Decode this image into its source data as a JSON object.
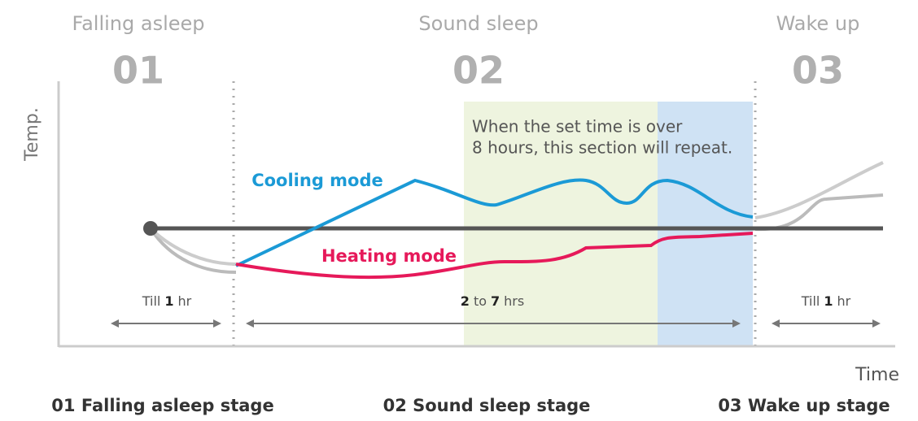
{
  "stages": [
    {
      "name": "Falling asleep",
      "number": "01",
      "caption": "01 Falling asleep stage"
    },
    {
      "name": "Sound sleep",
      "number": "02",
      "caption": "02 Sound sleep stage"
    },
    {
      "name": "Wake up",
      "number": "03",
      "caption": "03 Wake up stage"
    }
  ],
  "y_axis_label": "Temp.",
  "x_axis_label": "Time",
  "repeat_note": [
    "When the set time is over",
    "8 hours, this section will repeat."
  ],
  "modes": {
    "cooling": "Cooling mode",
    "heating": "Heating mode"
  },
  "durations": [
    [
      {
        "text": "Till"
      },
      {
        "text": "1",
        "bold": true
      },
      {
        "text": "hr"
      }
    ],
    [
      {
        "text": "2",
        "bold": true
      },
      {
        "text": "to"
      },
      {
        "text": "7",
        "bold": true
      },
      {
        "text": "hrs"
      }
    ],
    [
      {
        "text": "Till"
      },
      {
        "text": "1",
        "bold": true
      },
      {
        "text": "hr"
      }
    ]
  ]
}
